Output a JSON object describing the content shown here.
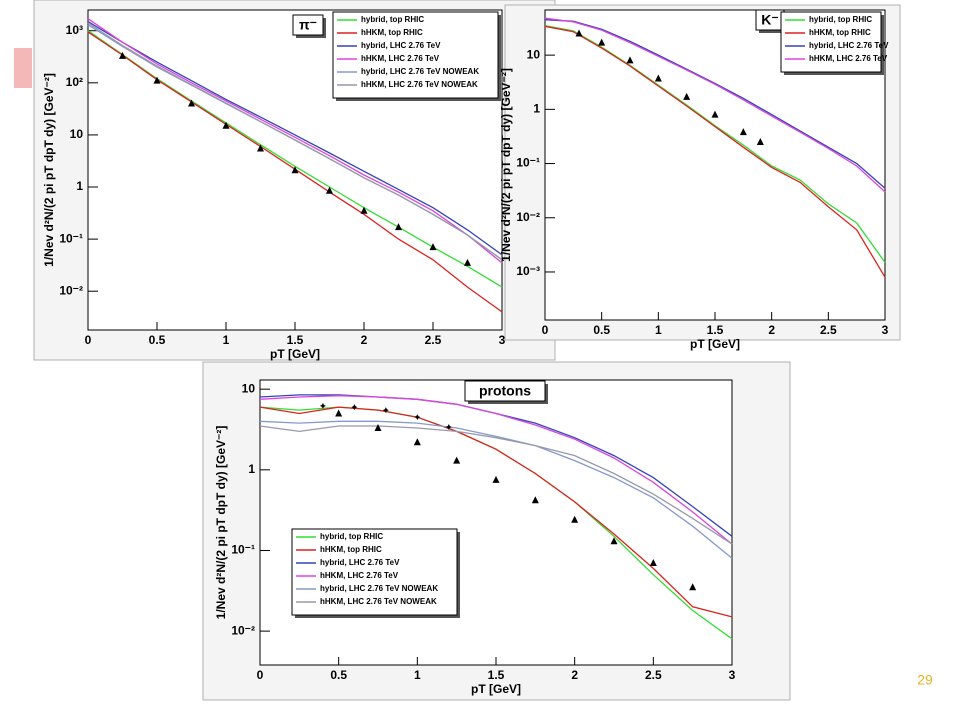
{
  "slide_number": "29",
  "chart_data": [
    {
      "type": "line",
      "title": "π⁻",
      "x_label": "pT [GeV]",
      "y_label": "1/Nev d²N/(2 pi pT dpT dy) [GeV⁻²]",
      "log_y": true,
      "legend": "upper right",
      "xlim": [
        0,
        3
      ],
      "xticks": [
        0,
        0.5,
        1,
        1.5,
        2,
        2.5,
        3
      ],
      "ylim": [
        0.0018,
        2500
      ],
      "yticks": [
        {
          "value": 0.01,
          "label": "10⁻²"
        },
        {
          "value": 0.1,
          "label": "10⁻¹"
        },
        1,
        10,
        {
          "value": 100,
          "label": "10²"
        },
        {
          "value": 1000,
          "label": "10³"
        }
      ],
      "x": [
        0,
        0.25,
        0.5,
        0.75,
        1,
        1.25,
        1.5,
        1.75,
        2,
        2.25,
        2.5,
        2.75,
        3
      ],
      "series": [
        {
          "name": "hybrid, top RHIC",
          "color": "#33dd33",
          "values": [
            1000,
            350,
            120,
            45,
            17,
            6.5,
            2.5,
            1,
            0.4,
            0.17,
            0.07,
            0.03,
            0.012
          ]
        },
        {
          "name": "hHKM, top RHIC",
          "color": "#dd2222",
          "values": [
            950,
            340,
            115,
            43,
            16,
            6,
            2.2,
            0.8,
            0.3,
            0.1,
            0.04,
            0.012,
            0.004
          ]
        },
        {
          "name": "hybrid, LHC 2.76 TeV",
          "color": "#3344bb",
          "values": [
            1500,
            600,
            250,
            110,
            48,
            22,
            10,
            4.5,
            2,
            0.9,
            0.4,
            0.15,
            0.05
          ]
        },
        {
          "name": "hHKM, LHC 2.76 TeV",
          "color": "#dd44dd",
          "values": [
            1700,
            600,
            230,
            100,
            45,
            20,
            9,
            4,
            1.7,
            0.8,
            0.35,
            0.12,
            0.035
          ]
        },
        {
          "name": "hybrid, LHC 2.76 TeV NOWEAK",
          "color": "#8899cc",
          "values": [
            1300,
            500,
            200,
            90,
            40,
            18,
            8,
            3.5,
            1.5,
            0.7,
            0.3,
            0.12,
            0.04
          ]
        },
        {
          "name": "hHKM, LHC 2.76 TeV NOWEAK",
          "color": "#9999aa",
          "values": [
            1400,
            520,
            210,
            92,
            41,
            18,
            8,
            3.5,
            1.5,
            0.7,
            0.3,
            0.12,
            0.04
          ]
        }
      ],
      "points": [
        {
          "marker": "triangle",
          "color": "#000000",
          "x": [
            0.25,
            0.5,
            0.75,
            1,
            1.25,
            1.5,
            1.75,
            2,
            2.25,
            2.5,
            2.75
          ],
          "values": [
            330,
            110,
            40,
            15,
            5.5,
            2.1,
            0.85,
            0.35,
            0.17,
            0.07,
            0.035
          ]
        }
      ]
    },
    {
      "type": "line",
      "title": "K⁻",
      "x_label": "pT [GeV]",
      "y_label": "1/Nev d²N/(2 pi pT dpT dy) [GeV⁻²]",
      "log_y": true,
      "legend": "upper right",
      "xlim": [
        0,
        3
      ],
      "xticks": [
        0,
        0.5,
        1,
        1.5,
        2,
        2.5,
        3
      ],
      "ylim": [
        0.00013,
        68
      ],
      "yticks": [
        {
          "value": 0.001,
          "label": "10⁻³"
        },
        {
          "value": 0.01,
          "label": "10⁻²"
        },
        {
          "value": 0.1,
          "label": "10⁻¹"
        },
        1,
        10
      ],
      "x": [
        0,
        0.25,
        0.5,
        0.75,
        1,
        1.25,
        1.5,
        1.75,
        2,
        2.25,
        2.5,
        2.75,
        3
      ],
      "series": [
        {
          "name": "hybrid, top RHIC",
          "color": "#33dd33",
          "values": [
            35,
            28,
            14,
            6.5,
            2.8,
            1.2,
            0.5,
            0.22,
            0.09,
            0.05,
            0.018,
            0.008,
            0.0015
          ]
        },
        {
          "name": "hHKM, top RHIC",
          "color": "#dd2222",
          "values": [
            34,
            27,
            13.5,
            6.3,
            2.7,
            1.15,
            0.48,
            0.2,
            0.085,
            0.045,
            0.016,
            0.006,
            0.0008
          ]
        },
        {
          "name": "hybrid, LHC 2.76 TeV",
          "color": "#3344bb",
          "values": [
            45,
            42,
            30,
            18,
            10,
            5.5,
            3,
            1.6,
            0.8,
            0.4,
            0.2,
            0.1,
            0.035
          ]
        },
        {
          "name": "hHKM, LHC 2.76 TeV",
          "color": "#dd44dd",
          "values": [
            48,
            41,
            29,
            17,
            9.5,
            5.3,
            2.9,
            1.5,
            0.75,
            0.38,
            0.19,
            0.09,
            0.03
          ]
        }
      ],
      "points": [
        {
          "marker": "triangle",
          "color": "#000000",
          "x": [
            0.3,
            0.5,
            0.75,
            1,
            1.25,
            1.5,
            1.75,
            1.9
          ],
          "values": [
            25,
            17,
            8,
            3.7,
            1.7,
            0.8,
            0.38,
            0.25
          ]
        }
      ]
    },
    {
      "type": "line",
      "title": "protons",
      "x_label": "pT [GeV]",
      "y_label": "1/Nev d²N/(2 pi pT dpT dy) [GeV⁻²]",
      "log_y": true,
      "legend": "lower left",
      "xlim": [
        0,
        3
      ],
      "xticks": [
        0,
        0.5,
        1,
        1.5,
        2,
        2.5,
        3
      ],
      "ylim": [
        0.0038,
        13
      ],
      "yticks": [
        {
          "value": 0.01,
          "label": "10⁻²"
        },
        {
          "value": 0.1,
          "label": "10⁻¹"
        },
        1,
        10
      ],
      "x": [
        0,
        0.25,
        0.5,
        0.75,
        1,
        1.25,
        1.5,
        1.75,
        2,
        2.25,
        2.5,
        2.75,
        3
      ],
      "series": [
        {
          "name": "hybrid, top RHIC",
          "color": "#33dd33",
          "values": [
            6,
            5.5,
            6,
            5.5,
            4.5,
            3,
            1.8,
            0.9,
            0.4,
            0.15,
            0.05,
            0.018,
            0.008
          ]
        },
        {
          "name": "hHKM, top RHIC",
          "color": "#dd2222",
          "values": [
            6,
            5,
            6,
            5.5,
            4.5,
            3,
            1.8,
            0.9,
            0.4,
            0.16,
            0.06,
            0.02,
            0.015
          ]
        },
        {
          "name": "hybrid, LHC 2.76 TeV",
          "color": "#3344bb",
          "values": [
            8,
            8.5,
            8.5,
            8,
            7.5,
            6.5,
            5,
            3.8,
            2.5,
            1.5,
            0.8,
            0.35,
            0.15
          ]
        },
        {
          "name": "hHKM, LHC 2.76 TeV",
          "color": "#dd44dd",
          "values": [
            7.5,
            8,
            8.3,
            8,
            7.5,
            6.5,
            5,
            3.6,
            2.4,
            1.4,
            0.7,
            0.3,
            0.12
          ]
        },
        {
          "name": "hybrid, LHC 2.76 TeV NOWEAK",
          "color": "#8899cc",
          "values": [
            4,
            3.8,
            4,
            4,
            3.8,
            3.3,
            2.6,
            2,
            1.3,
            0.8,
            0.45,
            0.2,
            0.08
          ]
        },
        {
          "name": "hHKM, LHC 2.76 TeV NOWEAK",
          "color": "#9999aa",
          "values": [
            3.5,
            3,
            3.5,
            3.5,
            3.3,
            3,
            2.5,
            2,
            1.5,
            0.9,
            0.5,
            0.25,
            0.12
          ]
        }
      ],
      "points": [
        {
          "marker": "triangle",
          "color": "#000000",
          "x": [
            0.5,
            0.75,
            1,
            1.25,
            1.5,
            1.75,
            2,
            2.25,
            2.5,
            2.75
          ],
          "values": [
            5,
            3.3,
            2.2,
            1.3,
            0.75,
            0.42,
            0.24,
            0.13,
            0.07,
            0.035
          ]
        },
        {
          "marker": "star",
          "color": "#000000",
          "x": [
            0.4,
            0.6,
            0.8,
            1.0,
            1.2
          ],
          "values": [
            6.2,
            6,
            5.5,
            4.5,
            3.4
          ]
        }
      ]
    }
  ]
}
